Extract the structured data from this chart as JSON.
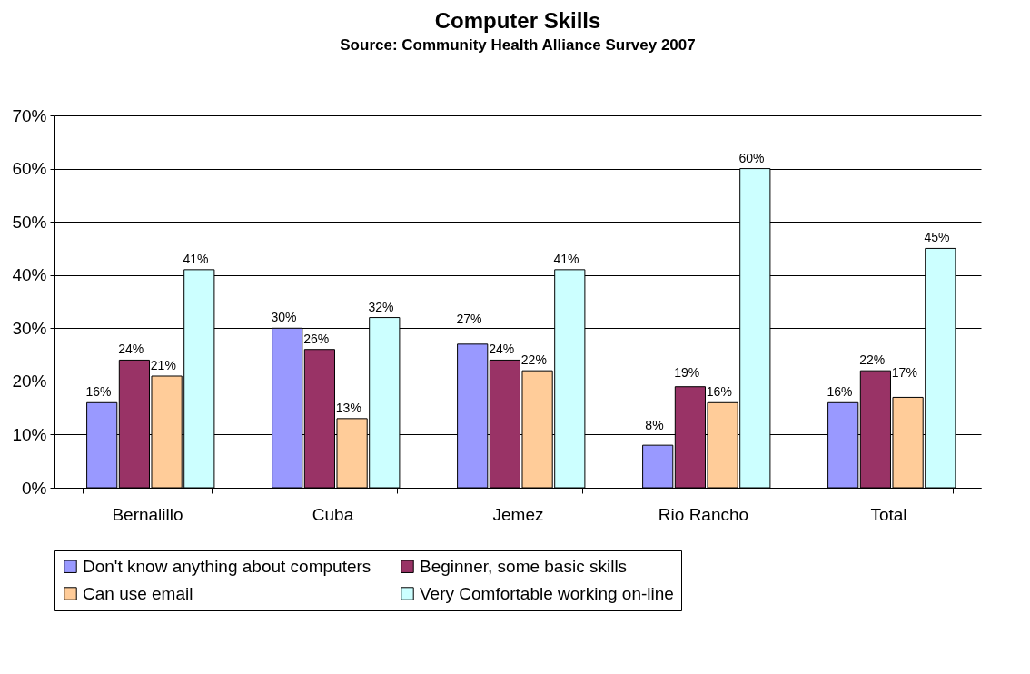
{
  "chart_data": {
    "type": "bar",
    "title": "Computer Skills",
    "subtitle": "Source:  Community Health Alliance Survey 2007",
    "categories": [
      "Bernalillo",
      "Cuba",
      "Jemez",
      "Rio Rancho",
      "Total"
    ],
    "series": [
      {
        "name": "Don't know anything about computers",
        "color": "#9999ff",
        "values": [
          16,
          30,
          27,
          8,
          16
        ],
        "value_labels": [
          "16%",
          "30%",
          "27%",
          "8%",
          "16%"
        ]
      },
      {
        "name": "Beginner, some basic skills",
        "color": "#993366",
        "values": [
          24,
          26,
          24,
          19,
          22
        ],
        "value_labels": [
          "24%",
          "26%",
          "24%",
          "19%",
          "22%"
        ]
      },
      {
        "name": "Can use email",
        "color": "#ffcc99",
        "values": [
          21,
          13,
          22,
          16,
          17
        ],
        "value_labels": [
          "21%",
          "13%",
          "22%",
          "16%",
          "17%"
        ]
      },
      {
        "name": "Very Comfortable working on-line",
        "color": "#ccffff",
        "values": [
          41,
          32,
          41,
          60,
          45
        ],
        "value_labels": [
          "41%",
          "32%",
          "41%",
          "60%",
          "45%"
        ]
      }
    ],
    "ylim": [
      0,
      70
    ],
    "yticks": [
      {
        "value": 0,
        "label": "0%"
      },
      {
        "value": 10,
        "label": "10%"
      },
      {
        "value": 20,
        "label": "20%"
      },
      {
        "value": 30,
        "label": "30%"
      },
      {
        "value": 40,
        "label": "40%"
      },
      {
        "value": 50,
        "label": "50%"
      },
      {
        "value": 60,
        "label": "60%"
      },
      {
        "value": 70,
        "label": "70%"
      }
    ],
    "grid": "y",
    "legend": "bottom"
  }
}
